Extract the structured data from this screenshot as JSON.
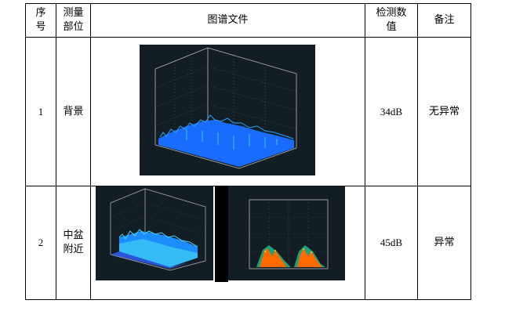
{
  "table": {
    "headers": [
      "序\n号",
      "测量\n部位",
      "图谱文件",
      "检测数\n值",
      "备注"
    ],
    "rows": [
      {
        "index": "1",
        "location": "背景",
        "value": "34dB",
        "remark": "无异常"
      },
      {
        "index": "2",
        "location": "中盆\n附近",
        "value": "45dB",
        "remark": "异常"
      }
    ]
  },
  "colors": {
    "plot_bg": "#131e24",
    "surface_blue": "#1a6cff",
    "surface_cyan": "#29c8f5",
    "prpd_orange": "#ff6a00"
  }
}
